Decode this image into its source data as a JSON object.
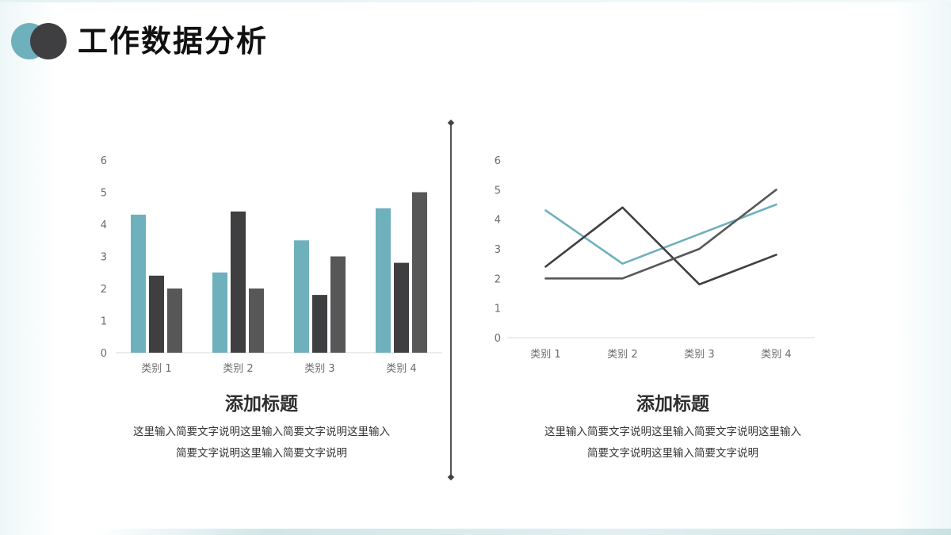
{
  "header": {
    "title": "工作数据分析"
  },
  "colors": {
    "teal": "#6fb0bd",
    "dark": "#3f3f42",
    "gray": "#575757",
    "axis": "#d9d9d9"
  },
  "left_section": {
    "caption_title": "添加标题",
    "caption_line1": "这里输入简要文字说明这里输入简要文字说明这里输入",
    "caption_line2": "简要文字说明这里输入简要文字说明"
  },
  "right_section": {
    "caption_title": "添加标题",
    "caption_line1": "这里输入简要文字说明这里输入简要文字说明这里输入",
    "caption_line2": "简要文字说明这里输入简要文字说明"
  },
  "chart_data": [
    {
      "type": "bar",
      "categories": [
        "类别 1",
        "类别 2",
        "类别 3",
        "类别 4"
      ],
      "series": [
        {
          "values": [
            4.3,
            2.5,
            3.5,
            4.5
          ],
          "color": "#6fb0bd"
        },
        {
          "values": [
            2.4,
            4.4,
            1.8,
            2.8
          ],
          "color": "#3f3f42"
        },
        {
          "values": [
            2.0,
            2.0,
            3.0,
            5.0
          ],
          "color": "#575757"
        }
      ],
      "ylim": [
        0,
        6
      ],
      "yticks": [
        0,
        1,
        2,
        3,
        4,
        5,
        6
      ],
      "grid": false,
      "legend": "none"
    },
    {
      "type": "line",
      "categories": [
        "类别 1",
        "类别 2",
        "类别 3",
        "类别 4"
      ],
      "series": [
        {
          "values": [
            4.3,
            2.5,
            3.5,
            4.5
          ],
          "color": "#6fb0bd"
        },
        {
          "values": [
            2.4,
            4.4,
            1.8,
            2.8
          ],
          "color": "#3f3f42"
        },
        {
          "values": [
            2.0,
            2.0,
            3.0,
            5.0
          ],
          "color": "#575757"
        }
      ],
      "ylim": [
        0,
        6
      ],
      "yticks": [
        0,
        1,
        2,
        3,
        4,
        5,
        6
      ],
      "grid": false,
      "legend": "none"
    }
  ]
}
